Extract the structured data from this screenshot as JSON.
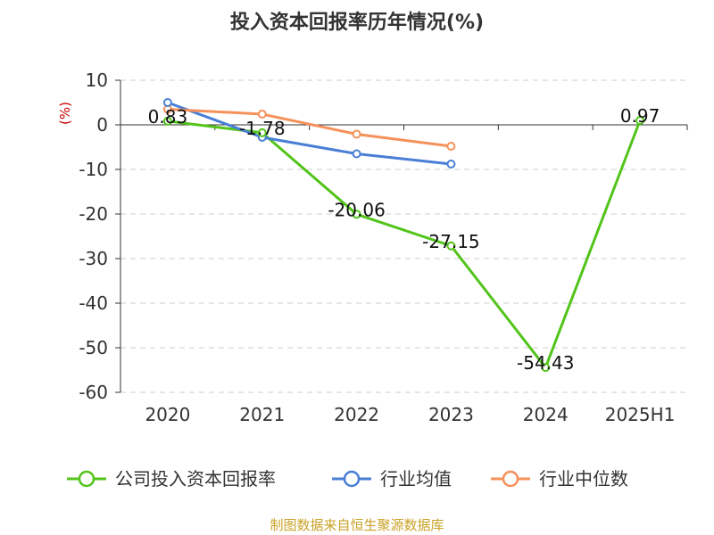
{
  "chart_data": {
    "type": "line",
    "title": "投入资本回报率历年情况(%)",
    "ylabel": "(%)",
    "xlabel": "",
    "categories": [
      "2020",
      "2021",
      "2022",
      "2023",
      "2024",
      "2025H1"
    ],
    "ylim": [
      -60,
      10
    ],
    "yticks": [
      10,
      0,
      -10,
      -20,
      -30,
      -40,
      -50,
      -60
    ],
    "grid": true,
    "legend_position": "bottom",
    "series": [
      {
        "name": "公司投入资本回报率",
        "color": "#52c41a",
        "values": [
          0.83,
          -1.78,
          -20.06,
          -27.15,
          -54.43,
          0.97
        ],
        "labels": [
          "0.83",
          "-1.78",
          "-20.06",
          "-27.15",
          "-54.43",
          "0.97"
        ]
      },
      {
        "name": "行业均值",
        "color": "#4a7fd6",
        "values": [
          5.0,
          -2.8,
          -6.5,
          -8.8,
          null,
          null
        ]
      },
      {
        "name": "行业中位数",
        "color": "#f5915a",
        "values": [
          3.5,
          2.4,
          -2.1,
          -4.8,
          null,
          null
        ]
      }
    ]
  },
  "source": "制图数据来自恒生聚源数据库"
}
